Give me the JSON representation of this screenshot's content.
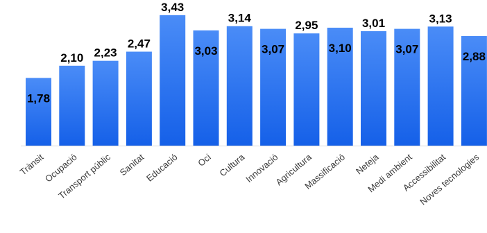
{
  "chart_data": {
    "type": "bar",
    "categories": [
      "Trànsit",
      "Ocupació",
      "Transport públic",
      "Sanitat",
      "Educació",
      "Oci",
      "Cultura",
      "Innovació",
      "Agricultura",
      "Massificació",
      "Neteja",
      "Medi ambient",
      "Accessibilitat",
      "Noves tecnologies"
    ],
    "values": [
      1.78,
      2.1,
      2.23,
      2.47,
      3.43,
      3.03,
      3.14,
      3.07,
      2.95,
      3.1,
      3.01,
      3.07,
      3.13,
      2.88
    ],
    "value_labels": [
      "1,78",
      "2,10",
      "2,23",
      "2,47",
      "3,43",
      "3,03",
      "3,14",
      "3,07",
      "2,95",
      "3,10",
      "3,01",
      "3,07",
      "3,13",
      "2,88"
    ],
    "title": "",
    "xlabel": "",
    "ylabel": "",
    "ylim": [
      0,
      3.5
    ],
    "grid": false,
    "legend": "none",
    "colors": {
      "bar_top": "#4a8cf7",
      "bar_bottom": "#1560e8",
      "baseline": "#d9d9d9",
      "label": "#000000",
      "tick": "#3a3a3a"
    }
  }
}
